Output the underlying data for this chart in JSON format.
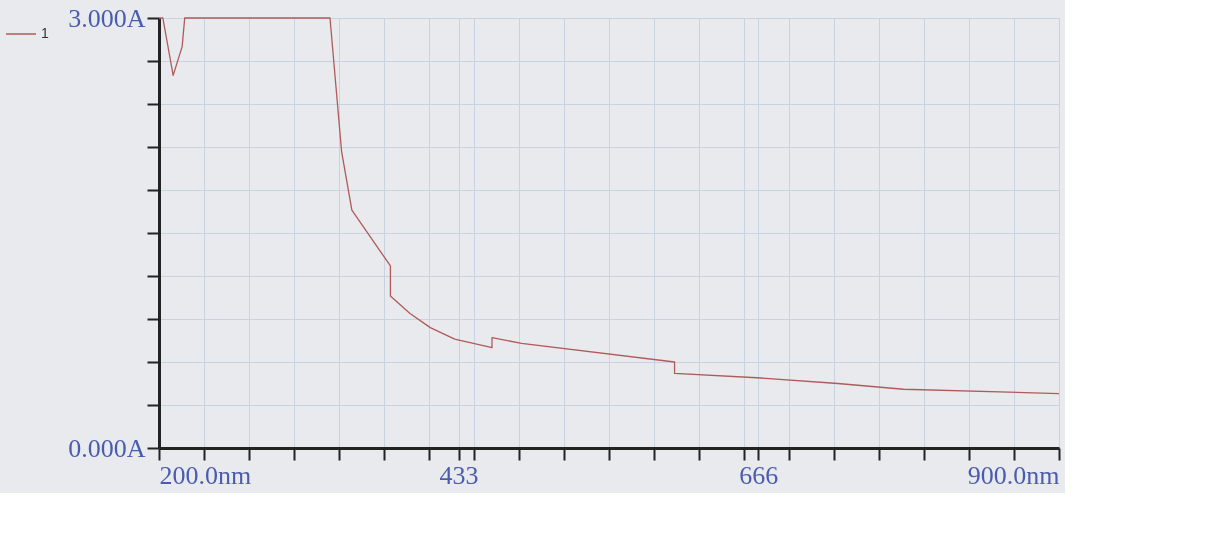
{
  "chart_data": {
    "type": "line",
    "x": [
      200,
      203,
      211,
      218,
      220,
      333,
      342,
      350,
      380,
      380,
      395,
      411,
      430,
      459,
      459,
      482,
      601,
      601,
      665,
      728,
      779,
      900
    ],
    "series": [
      {
        "name": "1",
        "color": "#b05a5a",
        "values": [
          3.0,
          3.0,
          2.6,
          2.8,
          3.0,
          3.0,
          2.07,
          1.66,
          1.27,
          1.06,
          0.94,
          0.84,
          0.76,
          0.7,
          0.77,
          0.73,
          0.6,
          0.52,
          0.49,
          0.45,
          0.41,
          0.38
        ]
      }
    ],
    "xlim": [
      200,
      900
    ],
    "xticks": [
      {
        "value": 200,
        "label": "200.0nm"
      },
      {
        "value": 235,
        "label": null
      },
      {
        "value": 270,
        "label": null
      },
      {
        "value": 305,
        "label": null
      },
      {
        "value": 340,
        "label": null
      },
      {
        "value": 375,
        "label": null
      },
      {
        "value": 410,
        "label": null
      },
      433,
      {
        "value": 445,
        "label": null
      },
      {
        "value": 480,
        "label": null
      },
      {
        "value": 515,
        "label": null
      },
      {
        "value": 550,
        "label": null
      },
      {
        "value": 585,
        "label": null
      },
      {
        "value": 620,
        "label": null
      },
      {
        "value": 655,
        "label": null
      },
      666,
      {
        "value": 690,
        "label": null
      },
      {
        "value": 725,
        "label": null
      },
      {
        "value": 760,
        "label": null
      },
      {
        "value": 795,
        "label": null
      },
      {
        "value": 830,
        "label": null
      },
      {
        "value": 865,
        "label": null
      },
      {
        "value": 900,
        "label": "900.0nm"
      }
    ],
    "ylim": [
      0,
      3
    ],
    "yticks": [
      {
        "value": 0,
        "label": "0.000A"
      },
      {
        "value": 0.3,
        "label": null
      },
      {
        "value": 0.6,
        "label": null
      },
      {
        "value": 0.9,
        "label": null
      },
      {
        "value": 1.2,
        "label": null
      },
      {
        "value": 1.5,
        "label": null
      },
      {
        "value": 1.8,
        "label": null
      },
      {
        "value": 2.1,
        "label": null
      },
      {
        "value": 2.4,
        "label": null
      },
      {
        "value": 2.7,
        "label": null
      },
      {
        "value": 3,
        "label": "3.000A"
      }
    ],
    "grid": true,
    "legend": "left",
    "line_style": "solid"
  }
}
